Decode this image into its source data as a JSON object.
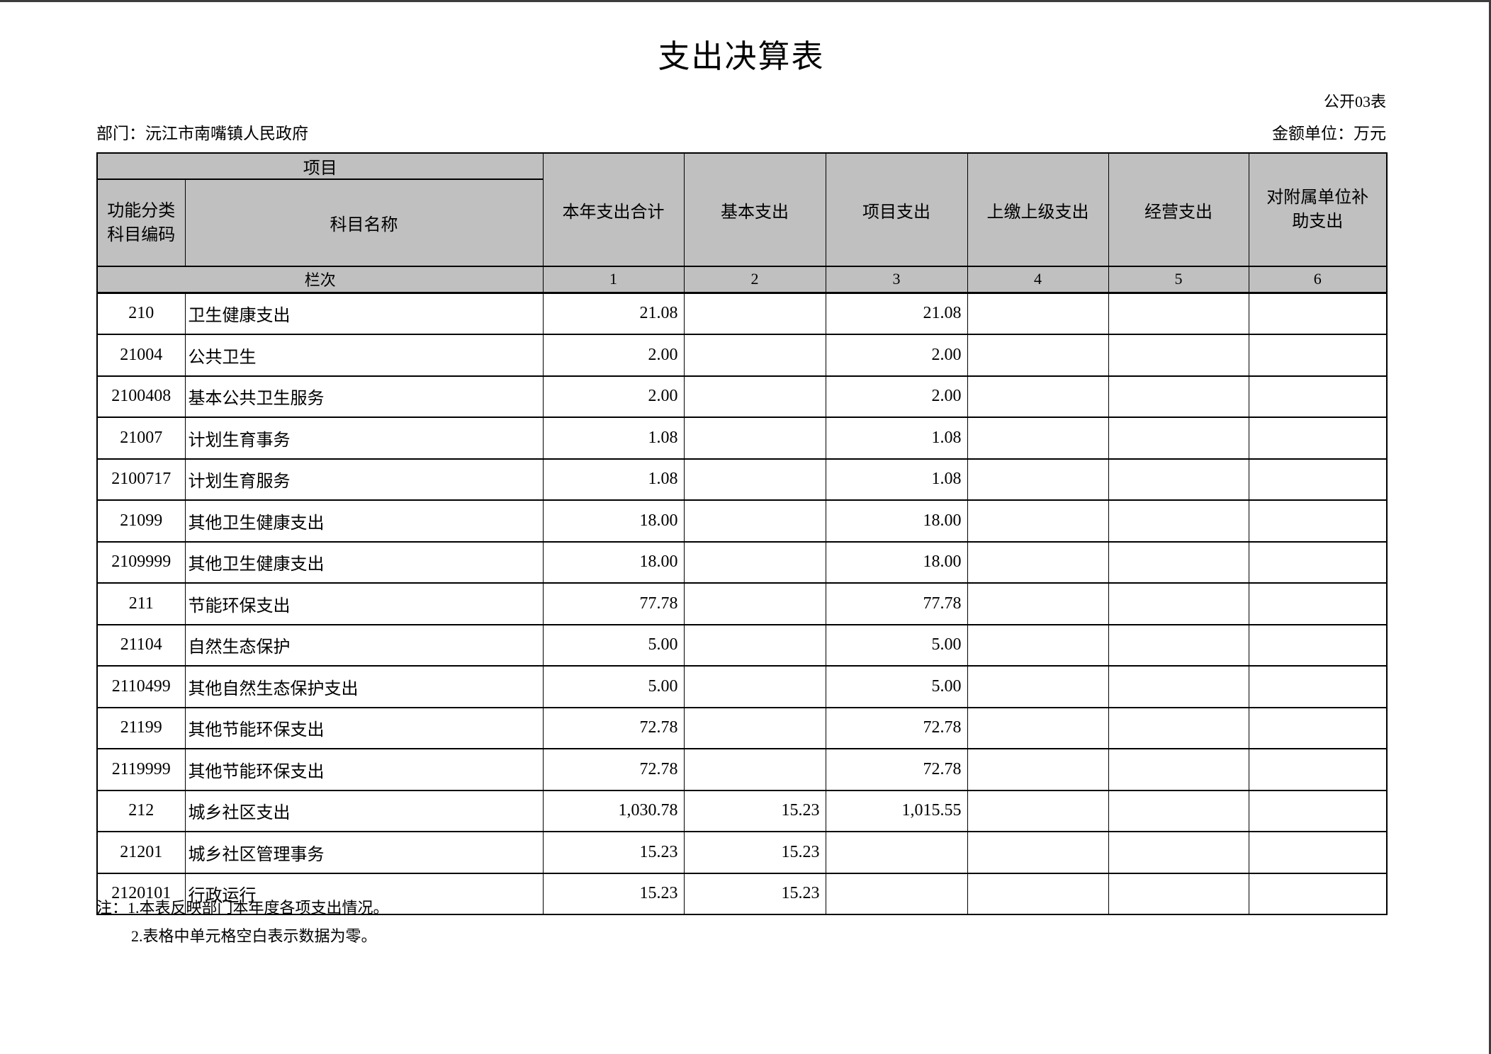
{
  "page": {
    "title": "支出决算表",
    "table_code": "公开03表",
    "department": "部门：沅江市南嘴镇人民政府",
    "unit": "金额单位：万元"
  },
  "colors": {
    "header_bg": "#c0c0c0",
    "border": "#000000",
    "page_edge": "#3c3c3c"
  },
  "table": {
    "project_group_label": "项目",
    "code_header_lines": [
      "功能分类",
      "科目编码"
    ],
    "subject_name_header": "科目名称",
    "value_columns": [
      "本年支出合计",
      "基本支出",
      "项目支出",
      "上缴上级支出",
      "经营支出",
      "对附属单位补助支出"
    ],
    "lanci_label": "栏次",
    "column_numbers": [
      "1",
      "2",
      "3",
      "4",
      "5",
      "6"
    ],
    "rows": [
      {
        "code": "210",
        "name": "卫生健康支出",
        "values": [
          "21.08",
          "",
          "21.08",
          "",
          "",
          ""
        ]
      },
      {
        "code": "21004",
        "name": "公共卫生",
        "values": [
          "2.00",
          "",
          "2.00",
          "",
          "",
          ""
        ]
      },
      {
        "code": "2100408",
        "name": "基本公共卫生服务",
        "values": [
          "2.00",
          "",
          "2.00",
          "",
          "",
          ""
        ]
      },
      {
        "code": "21007",
        "name": "计划生育事务",
        "values": [
          "1.08",
          "",
          "1.08",
          "",
          "",
          ""
        ]
      },
      {
        "code": "2100717",
        "name": "计划生育服务",
        "values": [
          "1.08",
          "",
          "1.08",
          "",
          "",
          ""
        ]
      },
      {
        "code": "21099",
        "name": "其他卫生健康支出",
        "values": [
          "18.00",
          "",
          "18.00",
          "",
          "",
          ""
        ]
      },
      {
        "code": "2109999",
        "name": "其他卫生健康支出",
        "values": [
          "18.00",
          "",
          "18.00",
          "",
          "",
          ""
        ]
      },
      {
        "code": "211",
        "name": "节能环保支出",
        "values": [
          "77.78",
          "",
          "77.78",
          "",
          "",
          ""
        ]
      },
      {
        "code": "21104",
        "name": "自然生态保护",
        "values": [
          "5.00",
          "",
          "5.00",
          "",
          "",
          ""
        ]
      },
      {
        "code": "2110499",
        "name": "其他自然生态保护支出",
        "values": [
          "5.00",
          "",
          "5.00",
          "",
          "",
          ""
        ]
      },
      {
        "code": "21199",
        "name": "其他节能环保支出",
        "values": [
          "72.78",
          "",
          "72.78",
          "",
          "",
          ""
        ]
      },
      {
        "code": "2119999",
        "name": "其他节能环保支出",
        "values": [
          "72.78",
          "",
          "72.78",
          "",
          "",
          ""
        ]
      },
      {
        "code": "212",
        "name": "城乡社区支出",
        "values": [
          "1,030.78",
          "15.23",
          "1,015.55",
          "",
          "",
          ""
        ]
      },
      {
        "code": "21201",
        "name": "城乡社区管理事务",
        "values": [
          "15.23",
          "15.23",
          "",
          "",
          "",
          ""
        ]
      },
      {
        "code": "2120101",
        "name": "行政运行",
        "values": [
          "15.23",
          "15.23",
          "",
          "",
          "",
          ""
        ]
      }
    ]
  },
  "notes": {
    "line1": "注：1.本表反映部门本年度各项支出情况。",
    "line2": "2.表格中单元格空白表示数据为零。"
  }
}
